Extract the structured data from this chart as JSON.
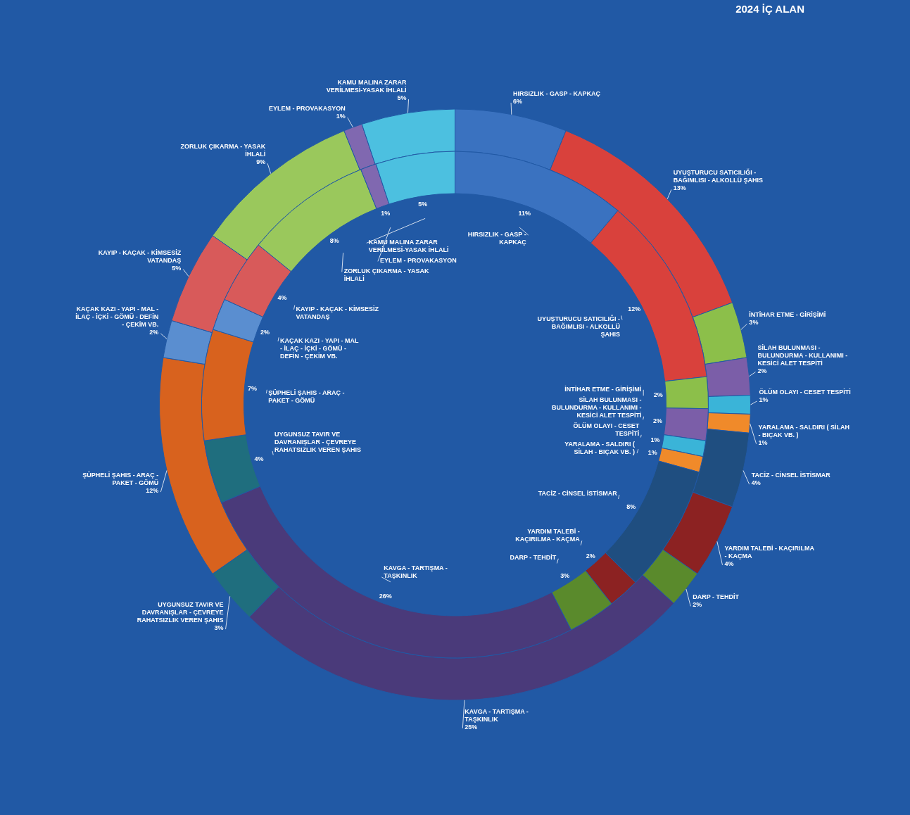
{
  "chart_data": {
    "type": "donut",
    "title": "2024 İÇ ALAN",
    "categories": [
      "HIRSIZLIK - GASP - KAPKAÇ",
      "UYUŞTURUCU SATICILIĞI - BAĞIMLISI - ALKOLLÜ ŞAHIS",
      "İNTİHAR ETME - GİRİŞİMİ",
      "SİLAH BULUNMASI - BULUNDURMA - KULLANIMI - KESİCİ ALET TESPİTİ",
      "ÖLÜM OLAYI - CESET TESPİTİ",
      "YARALAMA - SALDIRI ( SİLAH - BIÇAK VB. )",
      "TACİZ - CİNSEL İSTİSMAR",
      "YARDIM TALEBİ - KAÇIRILMA - KAÇMA",
      "DARP - TEHDİT",
      "KAVGA - TARTIŞMA - TAŞKINLIK",
      "UYGUNSUZ TAVIR VE DAVRANIŞLAR - ÇEVREYE RAHATSIZLIK VEREN ŞAHIS",
      "ŞÜPHELİ ŞAHIS - ARAÇ - PAKET - GÖMÜ",
      "KAÇAK KAZI - YAPI - MAL - İLAÇ - İÇKİ - GÖMÜ - DEFİN - ÇEKİM VB.",
      "KAYIP - KAÇAK - KİMSESİZ VATANDAŞ",
      "ZORLUK ÇIKARMA - YASAK İHLALİ",
      "EYLEM - PROVAKASYON",
      "KAMU MALINA ZARAR VERİLMESİ-YASAK İHLALİ"
    ],
    "colors": [
      "#3a72c0",
      "#d9413c",
      "#8cbf4a",
      "#7b5ea8",
      "#3ab4d8",
      "#f08a2a",
      "#1f4e80",
      "#8c2222",
      "#5a8a2c",
      "#4a3a7a",
      "#1f6e7e",
      "#d8621e",
      "#5a8ed0",
      "#d85a5a",
      "#9ac85c",
      "#8068b0",
      "#4cc0e0"
    ],
    "series": [
      {
        "values": [
          6,
          13,
          3,
          2,
          1,
          1,
          4,
          4,
          2,
          25,
          3,
          12,
          2,
          5,
          9,
          1,
          5
        ],
        "value_labels": [
          "6%",
          "13%",
          "3%",
          "2%",
          "1%",
          "1%",
          "4%",
          "4%",
          "2%",
          "25%",
          "3%",
          "12%",
          "2%",
          "5%",
          "9%",
          "1%",
          "5%"
        ]
      },
      {
        "values": [
          11,
          12,
          2,
          2,
          1,
          1,
          8,
          2,
          3,
          26,
          4,
          7,
          2,
          4,
          8,
          1,
          5
        ],
        "value_labels": [
          "11%",
          "12%",
          "2%",
          "2%",
          "1%",
          "1%",
          "8%",
          "2%",
          "3%",
          "26%",
          "4%",
          "7%",
          "2%",
          "4%",
          "8%",
          "1%",
          "5%"
        ]
      }
    ]
  }
}
